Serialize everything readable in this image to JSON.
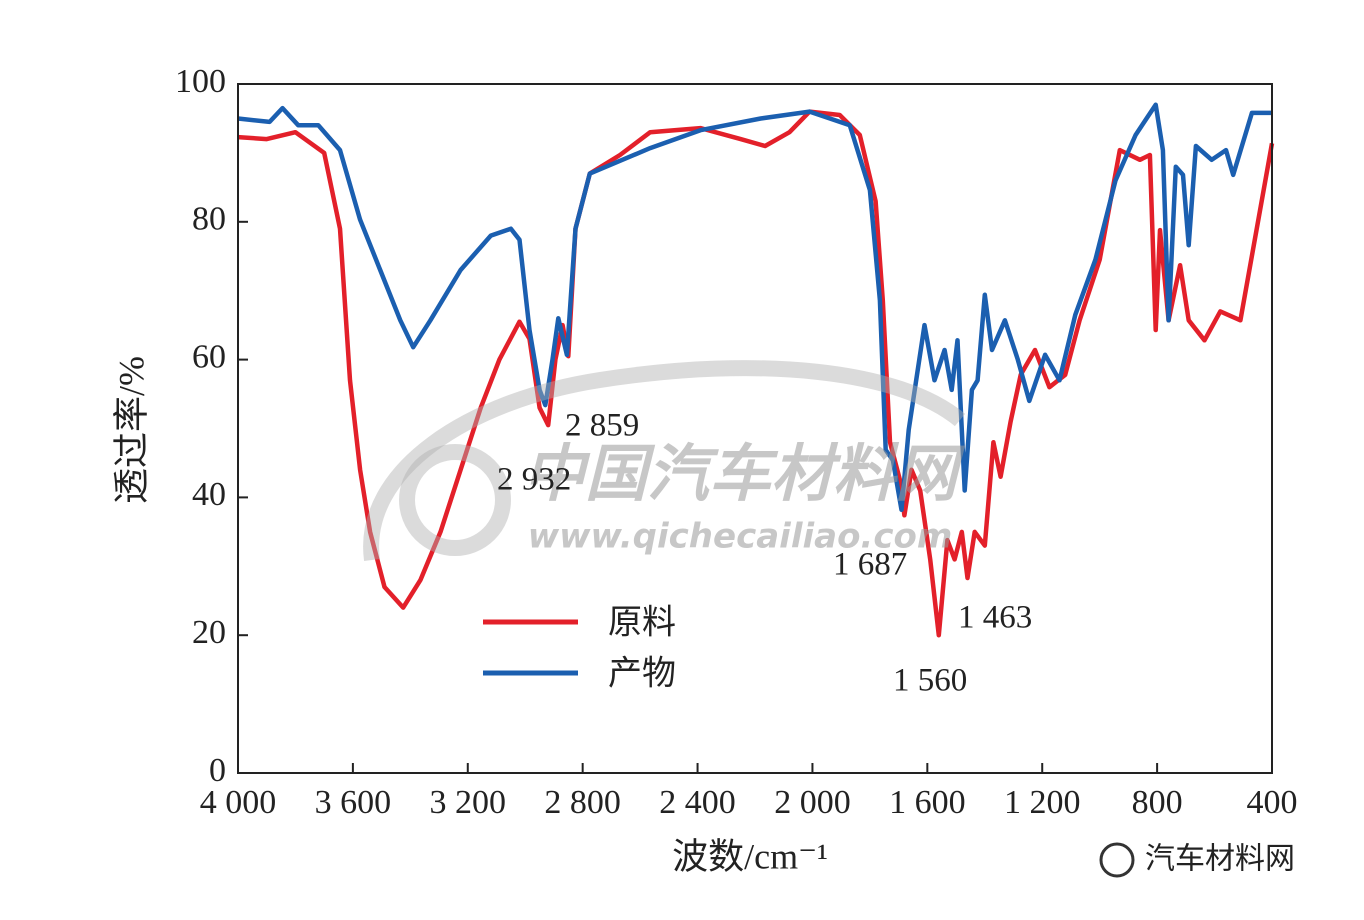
{
  "chart_data": {
    "type": "line",
    "xlabel": "波数/cm⁻¹",
    "ylabel": "透过率/%",
    "xlim": [
      4000,
      400
    ],
    "ylim": [
      0,
      100
    ],
    "xticks": [
      {
        "value": 4000,
        "label": "4 000"
      },
      {
        "value": 3600,
        "label": "3 600"
      },
      {
        "value": 3200,
        "label": "3 200"
      },
      {
        "value": 2800,
        "label": "2 800"
      },
      {
        "value": 2400,
        "label": "2 400"
      },
      {
        "value": 2000,
        "label": "2 000"
      },
      {
        "value": 1600,
        "label": "1 600"
      },
      {
        "value": 1200,
        "label": "1 200"
      },
      800,
      400
    ],
    "yticks": [
      0,
      20,
      40,
      60,
      80,
      100
    ],
    "annotations": [
      "2 859",
      "2 932",
      "1 687",
      "1 463",
      "1 560"
    ],
    "series": [
      {
        "name": "原料",
        "color": "#e3202a",
        "x": [
          4000,
          3900,
          3800,
          3700,
          3645,
          3610,
          3575,
          3540,
          3490,
          3425,
          3365,
          3295,
          3225,
          3155,
          3090,
          3020,
          2985,
          2950,
          2920,
          2895,
          2870,
          2850,
          2825,
          2775,
          2670,
          2565,
          2390,
          2250,
          2165,
          2080,
          2010,
          1905,
          1835,
          1780,
          1755,
          1730,
          1695,
          1680,
          1655,
          1625,
          1590,
          1560,
          1530,
          1505,
          1480,
          1460,
          1435,
          1400,
          1370,
          1345,
          1310,
          1275,
          1225,
          1175,
          1120,
          1070,
          1000,
          930,
          860,
          825,
          805,
          790,
          760,
          720,
          690,
          635,
          580,
          510,
          400
        ],
        "values": [
          92.3,
          92,
          93,
          90,
          79,
          57,
          44,
          35,
          27,
          24,
          28,
          35,
          44,
          53,
          60,
          65.5,
          63,
          53,
          50.5,
          60,
          65,
          60.5,
          79,
          87,
          89.7,
          93,
          93.6,
          92,
          91,
          93,
          96,
          95.5,
          92.6,
          83,
          68.6,
          48,
          42.5,
          37.4,
          44,
          41,
          31,
          20,
          33.8,
          31,
          35,
          28.3,
          35,
          33,
          48,
          43,
          51,
          57.8,
          61.4,
          56,
          57.8,
          65.7,
          74.5,
          90.4,
          89,
          89.7,
          64.3,
          78.8,
          65.7,
          73.7,
          65.7,
          62.8,
          67,
          65.7,
          91.4
        ]
      },
      {
        "name": "产物",
        "color": "#1b5fb0",
        "x": [
          4000,
          3890,
          3845,
          3790,
          3720,
          3645,
          3575,
          3505,
          3435,
          3390,
          3330,
          3225,
          3120,
          3050,
          3020,
          2985,
          2950,
          2930,
          2905,
          2885,
          2855,
          2825,
          2775,
          2565,
          2390,
          2180,
          2010,
          1870,
          1800,
          1765,
          1745,
          1720,
          1690,
          1665,
          1610,
          1575,
          1540,
          1515,
          1495,
          1470,
          1445,
          1425,
          1400,
          1375,
          1330,
          1285,
          1245,
          1190,
          1140,
          1085,
          1015,
          945,
          875,
          805,
          780,
          760,
          735,
          710,
          690,
          665,
          610,
          560,
          535,
          470,
          400
        ],
        "values": [
          95,
          94.5,
          96.5,
          94,
          94,
          90.4,
          80.3,
          73,
          65.7,
          61.8,
          65.7,
          73,
          78,
          79,
          77.4,
          64.3,
          55.6,
          53.4,
          60,
          66,
          60.7,
          79,
          87,
          90.7,
          93.3,
          95,
          96,
          94,
          84.6,
          68.6,
          46.9,
          45.4,
          38.2,
          49.8,
          65,
          57,
          61.4,
          55.6,
          62.8,
          41,
          55.6,
          57,
          69.4,
          61.4,
          65.7,
          60,
          54,
          60.7,
          57,
          66.5,
          74.5,
          86,
          92.6,
          97,
          90.4,
          65.7,
          88,
          86.8,
          76.6,
          91,
          89,
          90.4,
          86.8,
          95.8,
          95.8
        ]
      }
    ]
  },
  "watermark": [
    "中国汽车材料网",
    "www.qichecailiao.com"
  ],
  "footer": "汽车材料网"
}
